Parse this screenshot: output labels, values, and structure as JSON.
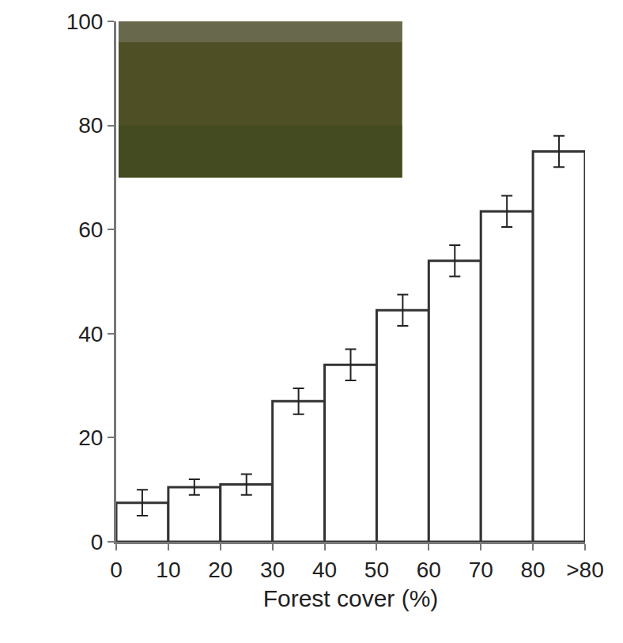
{
  "chart_data": {
    "type": "histogram",
    "x_label": "Forest cover (%)",
    "bins": [
      0,
      10,
      20,
      30,
      40,
      50,
      60,
      70,
      80,
      90
    ],
    "values": [
      7.5,
      10.5,
      11,
      27,
      34,
      44.5,
      54,
      63.5,
      75
    ],
    "errors": [
      2.5,
      1.5,
      2,
      2.5,
      3,
      3,
      3,
      3,
      3
    ],
    "color": "#ffffff",
    "xlim": [
      0,
      90
    ],
    "xticks": [
      0,
      10,
      20,
      30,
      40,
      50,
      60,
      70,
      80,
      {
        "value": 90,
        "label": ">80"
      }
    ],
    "ylim": [
      0,
      100
    ],
    "yticks": [
      0,
      20,
      40,
      60,
      80,
      100
    ],
    "grid": false
  }
}
